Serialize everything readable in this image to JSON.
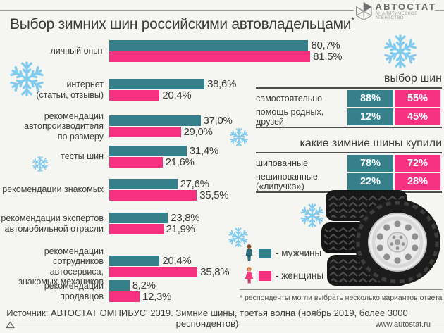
{
  "header": {
    "title": "Выбор зимних шин российскими автовладельцами",
    "title_mark": "*",
    "logo": {
      "name": "АВТОСТАТ",
      "subtitle": "АНАЛИТИЧЕСКОЕ АГЕНТСТВО"
    }
  },
  "colors": {
    "men": "#35808b",
    "women": "#f6317f",
    "snowflake": "#82cbee"
  },
  "chart_data": {
    "type": "bar",
    "orientation": "horizontal",
    "unit": "percent",
    "xlim": [
      0,
      100
    ],
    "categories": [
      "личный опыт",
      "интернет\n(статьи, отзывы)",
      "рекомендации\nавтопроизводителя\nпо размеру",
      "тесты шин",
      "рекомендации знакомых",
      "рекомендации экспертов\nавтомобильной отрасли",
      "рекомендации\nсотрудников автосервиса,\nзнакомых механиков",
      "рекомендации продавцов"
    ],
    "series": [
      {
        "name": "мужчины",
        "color": "#35808b",
        "values": [
          80.7,
          38.6,
          37.0,
          31.4,
          27.6,
          23.8,
          20.4,
          8.2
        ],
        "labels": [
          "80,7%",
          "38,6%",
          "37,0%",
          "31,4%",
          "27,6%",
          "23,8%",
          "20,4%",
          "8,2%"
        ]
      },
      {
        "name": "женщины",
        "color": "#f6317f",
        "values": [
          81.5,
          20.4,
          29.0,
          21.6,
          35.5,
          21.9,
          35.8,
          12.3
        ],
        "labels": [
          "81,5%",
          "20,4%",
          "29,0%",
          "21,6%",
          "35,5%",
          "21,9%",
          "35,8%",
          "12,3%"
        ]
      }
    ],
    "legend_position": "bottom-right",
    "grid": false
  },
  "tables": [
    {
      "title": "выбор шин",
      "rows": [
        {
          "label": "самостоятельно",
          "men": "88%",
          "women": "55%"
        },
        {
          "label": "помощь родных, друзей",
          "men": "12%",
          "women": "45%"
        }
      ]
    },
    {
      "title": "какие зимние шины купили",
      "rows": [
        {
          "label": "шипованные",
          "men": "78%",
          "women": "72%"
        },
        {
          "label": "нешипованные («липучка»)",
          "men": "22%",
          "women": "28%"
        }
      ]
    }
  ],
  "legend": [
    {
      "label": "- мужчины",
      "color": "#35808b"
    },
    {
      "label": "- женщины",
      "color": "#f6317f"
    }
  ],
  "footnote": "* респонденты могли выбрать несколько вариантов ответа",
  "footer": {
    "source": "Источник: АВТОСТАТ ОМНИБУС' 2019. Зимние шины, третья волна (ноябрь 2019, более 3000 респондентов)",
    "website": "www.autostat.ru"
  }
}
